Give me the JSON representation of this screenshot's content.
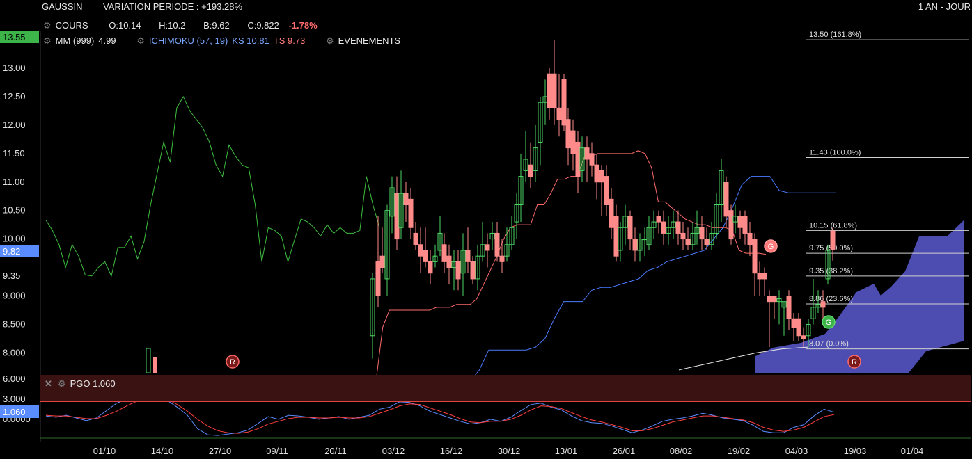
{
  "header": {
    "symbol": "GAUSSIN",
    "variation_label": "VARIATION PERIODE : +193.28%",
    "period": "1 AN - JOUR"
  },
  "legend": {
    "cours_label": "COURS",
    "open_label": "O:",
    "open": "10.14",
    "high_label": "H:",
    "high": "10.2",
    "low_label": "B:",
    "low": "9.62",
    "close_label": "C:",
    "close": "9.822",
    "change": "-1.78%",
    "mm_label": "MM (999)",
    "mm_value": "4.99",
    "ichimoku_label": "ICHIMOKU (57, 19)",
    "ks_label": "KS 10.81",
    "ts_label": "TS 9.73",
    "events_label": "EVENEMENTS"
  },
  "price_badges": {
    "top": "13.55",
    "last": "9.82"
  },
  "pgo": {
    "title": "PGO",
    "value": "1.060",
    "badge": "1.060"
  },
  "colors": {
    "up": "#4cd964",
    "down": "#ff8a8a",
    "ma": "#3fbf3f",
    "kijun": "#4a7cff",
    "tenkan": "#ff6b6b",
    "cloud": "#5a5ad0",
    "pgo_fast": "#5b8cff",
    "pgo_slow": "#ff4040"
  },
  "chart_data": {
    "type": "candlestick",
    "yaxis_ticks": [
      "13.00",
      "12.50",
      "12.00",
      "11.50",
      "11.00",
      "10.50",
      "10.00",
      "9.35",
      "9.000",
      "8.500",
      "8.000"
    ],
    "ylim": [
      7.65,
      13.55
    ],
    "xaxis_ticks": [
      "01/10",
      "14/10",
      "27/10",
      "09/11",
      "20/11",
      "03/12",
      "16/12",
      "30/12",
      "13/01",
      "26/01",
      "08/02",
      "19/02",
      "04/03",
      "19/03",
      "01/04"
    ],
    "fib_levels": [
      {
        "price": 13.5,
        "label": "13.50  (161.8%)"
      },
      {
        "price": 11.43,
        "label": "11.43  (100.0%)"
      },
      {
        "price": 10.15,
        "label": "10.15  (61.8%)"
      },
      {
        "price": 9.75,
        "label": "9.75  (50.0%)"
      },
      {
        "price": 9.35,
        "label": "9.35  (38.2%)"
      },
      {
        "price": 8.86,
        "label": "8.86  (23.6%)"
      },
      {
        "price": 8.07,
        "label": "8.07  (0.0%)"
      }
    ],
    "ma_line": [
      10.33,
      10.15,
      9.9,
      9.5,
      9.9,
      9.7,
      9.37,
      9.35,
      9.5,
      9.6,
      9.35,
      9.85,
      9.85,
      10.05,
      9.65,
      9.95,
      10.6,
      11.15,
      11.7,
      11.35,
      12.3,
      12.5,
      12.25,
      12.1,
      11.95,
      11.7,
      11.3,
      11.1,
      11.65,
      11.45,
      11.3,
      11.25,
      10.6,
      9.6,
      10.2,
      10.15,
      10.05,
      9.6,
      9.98,
      10.35,
      10.3,
      10.2,
      10.05,
      10.25,
      10.1,
      10.2,
      10.1,
      10.1,
      10.15,
      11.1,
      10.6,
      10.2
    ],
    "tenkan_line": [
      7.5,
      8.45,
      8.75,
      8.75,
      8.75,
      8.75,
      8.75,
      8.75,
      8.75,
      8.8,
      8.8,
      8.8,
      8.85,
      8.85,
      8.85,
      8.95,
      9.2,
      9.45,
      9.7,
      10.0,
      10.2,
      10.25,
      10.25,
      10.25,
      10.6,
      10.6,
      10.8,
      11.05,
      11.05,
      11.1,
      11.1,
      11.45,
      11.45,
      11.5,
      11.5,
      11.5,
      11.5,
      11.5,
      11.5,
      11.55,
      11.5,
      11.25,
      10.65,
      10.65,
      10.55,
      10.45,
      10.35,
      10.3,
      10.25,
      10.25,
      10.2,
      10.2,
      10.2,
      10.15,
      9.8,
      9.75,
      9.75,
      9.75,
      9.73
    ],
    "kijun_line": [
      7.5,
      7.7,
      8.05,
      8.05,
      8.05,
      8.05,
      8.05,
      8.1,
      8.25,
      8.6,
      8.9,
      8.9,
      8.9,
      9.1,
      9.15,
      9.15,
      9.2,
      9.25,
      9.3,
      9.45,
      9.5,
      9.6,
      9.65,
      9.7,
      9.75,
      9.8,
      10.0,
      10.2,
      10.55,
      10.95,
      11.1,
      11.1,
      11.1,
      10.85,
      10.81,
      10.81,
      10.81,
      10.81,
      10.81,
      10.81
    ],
    "ma999_line": [
      7.7,
      7.8,
      7.9,
      8.0,
      8.07,
      8.1
    ],
    "pgo_fast": [
      0.5,
      0.3,
      0.6,
      0.2,
      -0.2,
      0.2,
      1.3,
      2.4,
      3.0,
      3.6,
      4.8,
      3.3,
      2.8,
      1.8,
      0.6,
      -1.4,
      -2.3,
      -2.4,
      -2.2,
      -2.0,
      -1.6,
      -0.6,
      0.4,
      0.0,
      0.6,
      0.5,
      0.3,
      0.0,
      0.2,
      0.4,
      0.0,
      0.3,
      0.6,
      1.5,
      1.8,
      2.6,
      2.5,
      2.0,
      1.2,
      0.7,
      0.2,
      -0.3,
      -0.7,
      -0.5,
      0.0,
      -0.3,
      0.3,
      1.3,
      2.2,
      2.4,
      1.8,
      1.4,
      0.5,
      -0.2,
      -0.5,
      -0.6,
      -1.0,
      -1.5,
      -2.0,
      -1.6,
      -1.0,
      -0.3,
      0.0,
      0.2,
      0.5,
      0.9,
      0.6,
      0.2,
      0.0,
      -0.2,
      -0.9,
      -1.8,
      -2.0,
      -2.0,
      -1.2,
      -0.8,
      0.5,
      1.5,
      1.06
    ],
    "pgo_slow": [
      0.6,
      0.5,
      0.5,
      0.3,
      0.1,
      0.1,
      0.6,
      1.2,
      2.0,
      2.7,
      3.5,
      3.5,
      3.0,
      2.2,
      1.2,
      0.0,
      -1.0,
      -1.7,
      -2.0,
      -2.1,
      -1.9,
      -1.4,
      -0.7,
      -0.3,
      0.1,
      0.3,
      0.3,
      0.2,
      0.2,
      0.3,
      0.2,
      0.2,
      0.4,
      0.9,
      1.4,
      2.0,
      2.3,
      2.2,
      1.7,
      1.2,
      0.7,
      0.1,
      -0.4,
      -0.5,
      -0.3,
      -0.3,
      0.0,
      0.6,
      1.4,
      2.0,
      1.9,
      1.6,
      1.0,
      0.4,
      -0.1,
      -0.4,
      -0.8,
      -1.2,
      -1.7,
      -1.7,
      -1.4,
      -0.9,
      -0.4,
      -0.1,
      0.2,
      0.5,
      0.5,
      0.3,
      0.1,
      -0.1,
      -0.5,
      -1.2,
      -1.6,
      -1.8,
      -1.6,
      -1.2,
      -0.4,
      0.4,
      0.7
    ],
    "pgo_ticks": [
      "6.000",
      "3.000",
      "0.0000"
    ]
  }
}
